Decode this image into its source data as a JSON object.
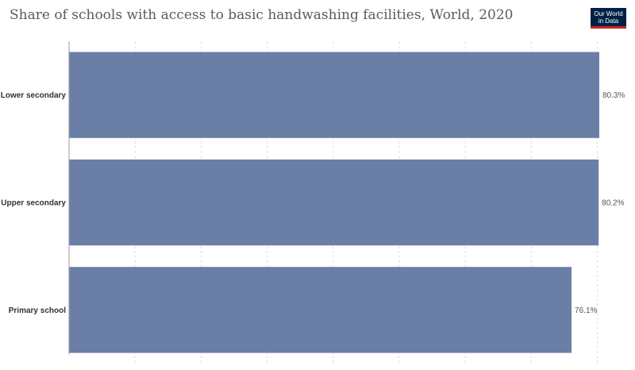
{
  "header": {
    "title": "Share of schools with access to basic handwashing facilities, World, 2020",
    "logo_line1": "Our World",
    "logo_line2": "in Data"
  },
  "colors": {
    "bar": "#6a7ea6",
    "grid": "#dddddd",
    "axis": "#999999"
  },
  "chart_data": {
    "type": "bar",
    "orientation": "horizontal",
    "title": "Share of schools with access to basic handwashing facilities, World, 2020",
    "categories": [
      "Lower secondary",
      "Upper secondary",
      "Primary school"
    ],
    "values": [
      80.3,
      80.2,
      76.1
    ],
    "value_labels": [
      "80.3%",
      "80.2%",
      "76.1%"
    ],
    "xlabel": "",
    "ylabel": "",
    "xlim": [
      0,
      80.3
    ],
    "grid": true,
    "grid_step": 10
  }
}
